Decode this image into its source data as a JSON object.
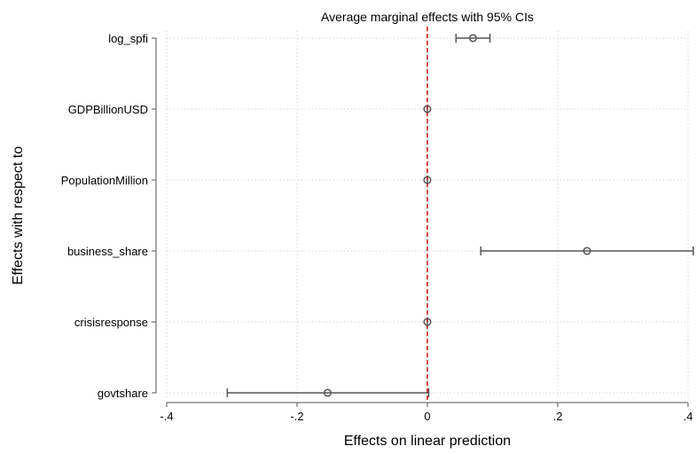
{
  "chart_data": {
    "type": "coefficient-plot",
    "title": "Average marginal effects with 95% CIs",
    "xlabel": "Effects on linear prediction",
    "ylabel": "Effects with respect to",
    "xlim": [
      -0.4,
      0.4
    ],
    "xticks": [
      -0.4,
      -0.2,
      0,
      0.2,
      0.4
    ],
    "xtick_labels": [
      "-.4",
      "-.2",
      "0",
      ".2",
      ".4"
    ],
    "reference_line": 0,
    "reference_line_color": "#cc0000",
    "marker_color": "#555555",
    "grid": true,
    "series": [
      {
        "label": "log_spfi",
        "estimate": 0.07,
        "ci_low": 0.044,
        "ci_high": 0.096
      },
      {
        "label": "GDPBillionUSD",
        "estimate": 0.0,
        "ci_low": 0.0,
        "ci_high": 0.0
      },
      {
        "label": "PopulationMillion",
        "estimate": 0.0,
        "ci_low": 0.0,
        "ci_high": 0.0
      },
      {
        "label": "business_share",
        "estimate": 0.245,
        "ci_low": 0.082,
        "ci_high": 0.408
      },
      {
        "label": "crisisresponse",
        "estimate": 0.0,
        "ci_low": 0.0,
        "ci_high": 0.0
      },
      {
        "label": "govtshare",
        "estimate": -0.153,
        "ci_low": -0.307,
        "ci_high": 0.002
      }
    ]
  }
}
